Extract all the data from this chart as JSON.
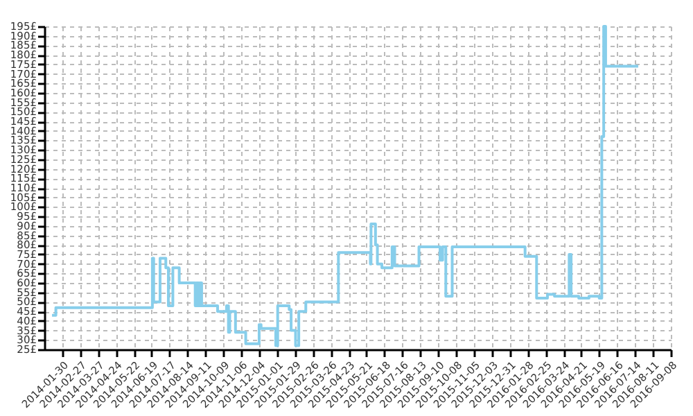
{
  "chart_data": {
    "type": "step",
    "x": [
      "2014-01-14",
      "2014-01-20",
      "2014-06-20",
      "2014-06-22",
      "2014-07-02",
      "2014-07-11",
      "2014-07-15",
      "2014-07-22",
      "2014-08-01",
      "2014-08-26",
      "2014-08-28",
      "2014-08-31",
      "2014-09-02",
      "2014-09-05",
      "2014-09-30",
      "2014-10-14",
      "2014-10-17",
      "2014-10-19",
      "2014-10-28",
      "2014-11-13",
      "2014-12-04",
      "2014-12-07",
      "2014-12-30",
      "2015-01-02",
      "2015-01-20",
      "2015-01-23",
      "2015-01-30",
      "2015-02-04",
      "2015-02-15",
      "2015-04-07",
      "2015-05-27",
      "2015-05-28",
      "2015-06-04",
      "2015-06-07",
      "2015-06-14",
      "2015-06-30",
      "2015-07-04",
      "2015-08-11",
      "2015-09-13",
      "2015-09-17",
      "2015-09-22",
      "2015-10-02",
      "2016-01-24",
      "2016-02-11",
      "2016-02-28",
      "2016-03-10",
      "2016-04-02",
      "2016-04-05",
      "2016-04-17",
      "2016-05-03",
      "2016-05-19",
      "2016-05-23",
      "2016-05-26",
      "2016-05-29",
      "2016-07-19"
    ],
    "series": [
      {
        "color": "#87ceeb",
        "values": [
          43,
          47,
          73,
          50,
          73,
          68,
          48,
          68,
          60,
          48,
          60,
          48,
          60,
          48,
          45,
          48,
          34,
          45,
          34,
          28,
          38,
          36,
          27,
          48,
          46,
          35,
          27,
          45,
          50,
          76,
          70,
          91,
          80,
          70,
          68,
          79,
          69,
          79,
          72,
          79,
          53,
          79,
          74,
          52,
          54,
          53,
          75,
          53,
          52,
          53,
          52,
          137,
          195,
          174,
          174
        ]
      }
    ],
    "xlim": [
      "2014-01-02",
      "2016-09-08"
    ],
    "xticks": [
      "2014-01-30",
      "2014-02-27",
      "2014-03-27",
      "2014-04-24",
      "2014-05-22",
      "2014-06-19",
      "2014-07-17",
      "2014-08-14",
      "2014-09-11",
      "2014-10-09",
      "2014-11-06",
      "2014-12-04",
      "2015-01-01",
      "2015-01-29",
      "2015-02-26",
      "2015-03-26",
      "2015-04-23",
      "2015-05-21",
      "2015-06-18",
      "2015-07-16",
      "2015-08-13",
      "2015-09-10",
      "2015-10-08",
      "2015-11-05",
      "2015-12-03",
      "2015-12-31",
      "2016-01-28",
      "2016-02-25",
      "2016-03-24",
      "2016-04-21",
      "2016-05-19",
      "2016-06-16",
      "2016-07-14",
      "2016-08-11",
      "2016-09-08"
    ],
    "ylim": [
      25,
      195
    ],
    "yticks": [
      {
        "value": 25,
        "label": "25£"
      },
      {
        "value": 30,
        "label": "30£"
      },
      {
        "value": 35,
        "label": "35£"
      },
      {
        "value": 40,
        "label": "40£"
      },
      {
        "value": 45,
        "label": "45£"
      },
      {
        "value": 50,
        "label": "50£"
      },
      {
        "value": 55,
        "label": "55£"
      },
      {
        "value": 60,
        "label": "60£"
      },
      {
        "value": 65,
        "label": "65£"
      },
      {
        "value": 70,
        "label": "70£"
      },
      {
        "value": 75,
        "label": "75£"
      },
      {
        "value": 80,
        "label": "80£"
      },
      {
        "value": 85,
        "label": "85£"
      },
      {
        "value": 90,
        "label": "90£"
      },
      {
        "value": 95,
        "label": "95£"
      },
      {
        "value": 100,
        "label": "100£"
      },
      {
        "value": 105,
        "label": "105£"
      },
      {
        "value": 110,
        "label": "110£"
      },
      {
        "value": 115,
        "label": "115£"
      },
      {
        "value": 120,
        "label": "120£"
      },
      {
        "value": 125,
        "label": "125£"
      },
      {
        "value": 130,
        "label": "130£"
      },
      {
        "value": 135,
        "label": "135£"
      },
      {
        "value": 140,
        "label": "140£"
      },
      {
        "value": 145,
        "label": "145£"
      },
      {
        "value": 150,
        "label": "150£"
      },
      {
        "value": 155,
        "label": "155£"
      },
      {
        "value": 160,
        "label": "160£"
      },
      {
        "value": 165,
        "label": "165£"
      },
      {
        "value": 170,
        "label": "170£"
      },
      {
        "value": 175,
        "label": "175£"
      },
      {
        "value": 180,
        "label": "180£"
      },
      {
        "value": 185,
        "label": "185£"
      },
      {
        "value": 190,
        "label": "190£"
      },
      {
        "value": 195,
        "label": "195£"
      }
    ],
    "grid": true
  }
}
